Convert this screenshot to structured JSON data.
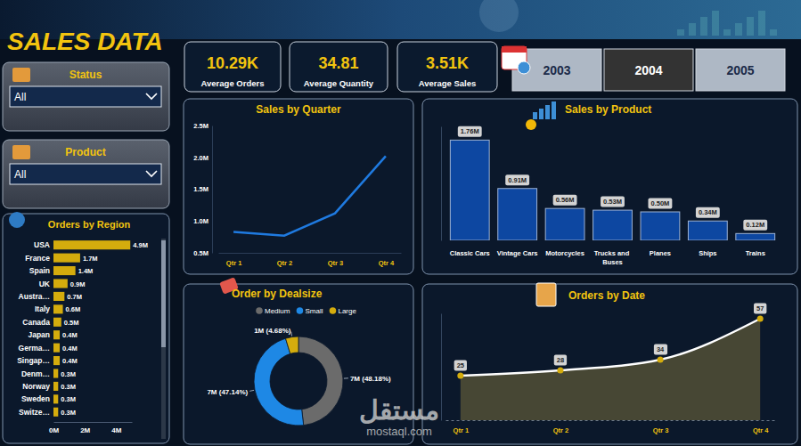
{
  "header": {
    "title": "SALES DATA"
  },
  "filters": [
    {
      "label": "Status",
      "value": "All"
    },
    {
      "label": "Product",
      "value": "All"
    }
  ],
  "kpis": [
    {
      "value": "10.29K",
      "label": "Average Orders"
    },
    {
      "value": "34.81",
      "label": "Average Quantity"
    },
    {
      "value": "3.51K",
      "label": "Average Sales"
    }
  ],
  "years": {
    "options": [
      "2003",
      "2004",
      "2005"
    ],
    "selected": "2004"
  },
  "watermark": {
    "arabic": "مستقل",
    "latin": "mostaql.com"
  },
  "chart_data": [
    {
      "type": "bar",
      "title": "Orders by Region",
      "orientation": "horizontal",
      "categories": [
        "USA",
        "France",
        "Spain",
        "UK",
        "Austra…",
        "Italy",
        "Canada",
        "Japan",
        "Germa…",
        "Singap…",
        "Denm…",
        "Norway",
        "Sweden",
        "Switze…"
      ],
      "values": [
        4.9,
        1.7,
        1.4,
        0.9,
        0.7,
        0.6,
        0.5,
        0.4,
        0.4,
        0.4,
        0.3,
        0.3,
        0.3,
        0.3
      ],
      "value_labels": [
        "4.9M",
        "1.7M",
        "1.4M",
        "0.9M",
        "0.7M",
        "0.6M",
        "0.5M",
        "0.4M",
        "0.4M",
        "0.4M",
        "0.3M",
        "0.3M",
        "0.3M",
        "0.3M"
      ],
      "data_labels": true,
      "color": "#d4ac0d",
      "xlim": [
        0,
        5
      ],
      "xticks": [
        {
          "value": 0,
          "label": "0M"
        },
        {
          "value": 2,
          "label": "2M"
        },
        {
          "value": 4,
          "label": "4M"
        }
      ]
    },
    {
      "type": "line",
      "title": "Sales by Quarter",
      "categories": [
        "Qtr 1",
        "Qtr 2",
        "Qtr 3",
        "Qtr 4"
      ],
      "values": [
        0.83,
        0.77,
        1.12,
        2.02
      ],
      "color": "#1f7ae0",
      "ylim": [
        0.5,
        2.5
      ],
      "yticks": [
        {
          "value": 0.5,
          "label": "0.5M"
        },
        {
          "value": 1,
          "label": "1.0M"
        },
        {
          "value": 1.5,
          "label": "1.5M"
        },
        {
          "value": 2,
          "label": "2.0M"
        },
        {
          "value": 2.5,
          "label": "2.5M"
        }
      ]
    },
    {
      "type": "bar",
      "title": "Sales by Product",
      "categories": [
        "Classic Cars",
        "Vintage Cars",
        "Motorcycles",
        "Trucks and Buses",
        "Planes",
        "Ships",
        "Trains"
      ],
      "values": [
        1.76,
        0.91,
        0.56,
        0.53,
        0.5,
        0.34,
        0.12
      ],
      "value_labels": [
        "1.76M",
        "0.91M",
        "0.56M",
        "0.53M",
        "0.50M",
        "0.34M",
        "0.12M"
      ],
      "data_labels": true,
      "tick_labels": "x",
      "color": "#0d47a1",
      "ylim": [
        0,
        2
      ]
    },
    {
      "type": "pie",
      "title": "Order by Dealsize",
      "categories": [
        "Medium",
        "Small",
        "Large"
      ],
      "values": [
        48.18,
        47.14,
        4.68
      ],
      "value_labels": [
        "7M (48.18%)",
        "7M (47.14%)",
        "1M (4.68%)"
      ],
      "colors": [
        "#6b6b6b",
        "#1e88e5",
        "#d4ac0d"
      ],
      "data_labels": true,
      "legend": "top"
    },
    {
      "type": "area",
      "title": "Orders by Date",
      "categories": [
        "Qtr 1",
        "Qtr 2",
        "Qtr 3",
        "Qtr 4"
      ],
      "values": [
        25,
        28,
        34,
        57
      ],
      "data_labels": true,
      "tick_labels": "x",
      "color": "#4b4a35",
      "marker": "circle",
      "ylim": [
        0,
        60
      ]
    }
  ]
}
